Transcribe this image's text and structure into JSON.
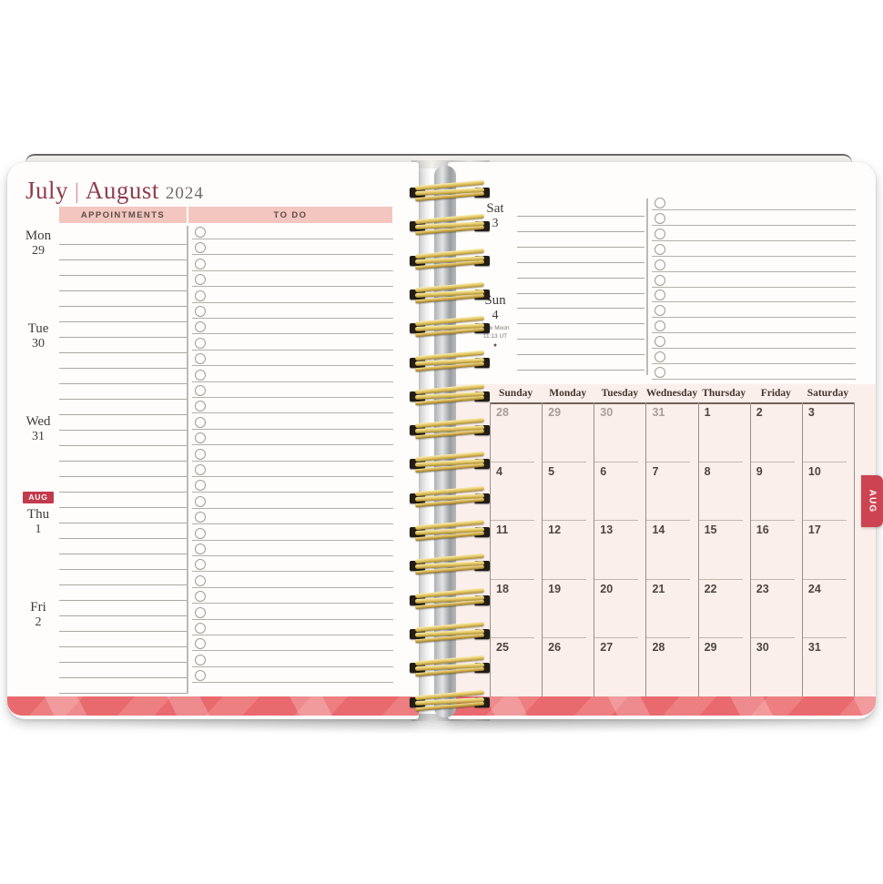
{
  "title": {
    "month_left": "July",
    "separator": "|",
    "month_right": "August",
    "year": "2024"
  },
  "left_page": {
    "appointments_header": "APPOINTMENTS",
    "todo_header": "TO DO",
    "lines_per_day": 6,
    "todo_rows": 29,
    "days": [
      {
        "name": "Mon",
        "date": "29"
      },
      {
        "name": "Tue",
        "date": "30"
      },
      {
        "name": "Wed",
        "date": "31"
      },
      {
        "name": "Thu",
        "date": "1",
        "badge": "AUG"
      },
      {
        "name": "Fri",
        "date": "2"
      }
    ]
  },
  "right_page": {
    "todo_rows": 12,
    "days": [
      {
        "name": "Sat",
        "date": "3",
        "lines": 6
      },
      {
        "name": "Sun",
        "date": "4",
        "lines": 5,
        "note_line1": "New Moon",
        "note_line2": "11:13 UT",
        "moon_icon": "●"
      }
    ],
    "mini_calendar": {
      "day_headers": [
        "Sunday",
        "Monday",
        "Tuesday",
        "Wednesday",
        "Thursday",
        "Friday",
        "Saturday"
      ],
      "weeks": [
        [
          {
            "n": "28",
            "muted": true
          },
          {
            "n": "29",
            "muted": true
          },
          {
            "n": "30",
            "muted": true
          },
          {
            "n": "31",
            "muted": true
          },
          {
            "n": "1"
          },
          {
            "n": "2"
          },
          {
            "n": "3"
          }
        ],
        [
          {
            "n": "4"
          },
          {
            "n": "5"
          },
          {
            "n": "6"
          },
          {
            "n": "7"
          },
          {
            "n": "8"
          },
          {
            "n": "9"
          },
          {
            "n": "10"
          }
        ],
        [
          {
            "n": "11"
          },
          {
            "n": "12"
          },
          {
            "n": "13"
          },
          {
            "n": "14"
          },
          {
            "n": "15"
          },
          {
            "n": "16"
          },
          {
            "n": "17"
          }
        ],
        [
          {
            "n": "18"
          },
          {
            "n": "19"
          },
          {
            "n": "20"
          },
          {
            "n": "21"
          },
          {
            "n": "22"
          },
          {
            "n": "23"
          },
          {
            "n": "24"
          }
        ],
        [
          {
            "n": "25"
          },
          {
            "n": "26"
          },
          {
            "n": "27"
          },
          {
            "n": "28"
          },
          {
            "n": "29"
          },
          {
            "n": "30"
          },
          {
            "n": "31"
          }
        ]
      ]
    }
  },
  "aug_tab": {
    "label": "AUG"
  },
  "binding": {
    "coil_count": 16
  },
  "colors": {
    "accent_red": "#c23b4d",
    "coral_strip": "#e96a6e",
    "header_pink": "#f4c6c0",
    "calendar_pink": "#fbefec",
    "title_maroon": "#8f3e4e",
    "coil_gold": "#e0c25e"
  }
}
